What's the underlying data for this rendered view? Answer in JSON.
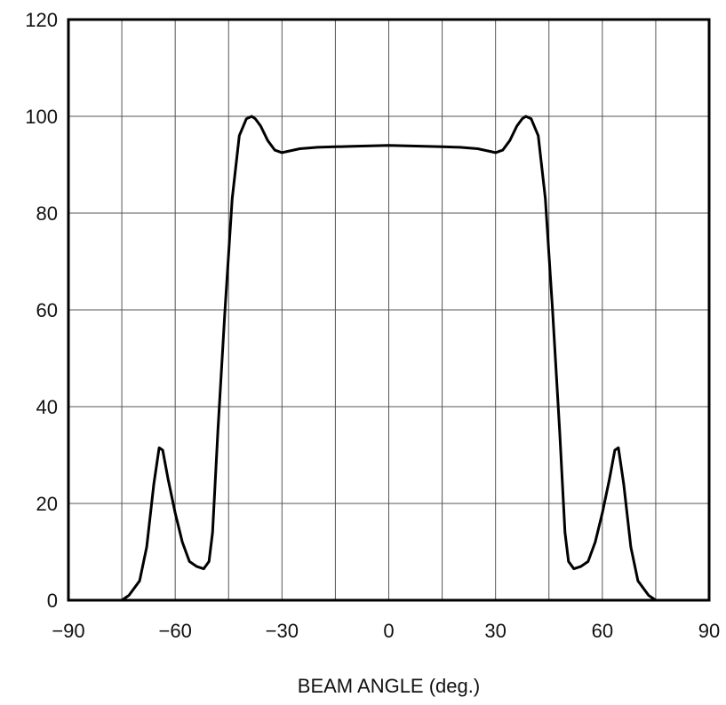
{
  "chart_data": {
    "type": "line",
    "title": "",
    "xlabel": "BEAM ANGLE (deg.)",
    "ylabel": "",
    "xlim": [
      -90,
      90
    ],
    "ylim": [
      0,
      120
    ],
    "grid": true,
    "x_ticks": [
      -90,
      -75,
      -60,
      -45,
      -30,
      -15,
      0,
      15,
      30,
      45,
      60,
      75,
      90
    ],
    "x_tick_labels": [
      "−90",
      "",
      "−60",
      "",
      "−30",
      "",
      "0",
      "",
      "30",
      "",
      "60",
      "",
      "90"
    ],
    "y_ticks": [
      0,
      20,
      40,
      60,
      80,
      100,
      120
    ],
    "y_tick_labels": [
      "0",
      "20",
      "40",
      "60",
      "80",
      "100",
      "120"
    ],
    "colors": {
      "line": "#000000",
      "grid": "#555555",
      "frame": "#000000"
    },
    "series": [
      {
        "x": [
          -75,
          -73,
          -70,
          -68,
          -66,
          -64.5,
          -63.5,
          -62,
          -60,
          -58,
          -56,
          -54,
          -52,
          -50.5,
          -49.5,
          -48,
          -46,
          -44,
          -42,
          -40,
          -38.5,
          -37.5,
          -36,
          -34,
          -32,
          -30,
          -25,
          -20,
          -15,
          -10,
          -5,
          0,
          5,
          10,
          15,
          20,
          25,
          30,
          32,
          34,
          36,
          37.5,
          38.5,
          40,
          42,
          44,
          46,
          48,
          49.5,
          50.5,
          52,
          54,
          56,
          58,
          60,
          62,
          63.5,
          64.5,
          66,
          68,
          70,
          73,
          75
        ],
        "y": [
          0,
          1,
          4,
          11,
          24,
          31.5,
          31,
          25,
          18,
          12,
          8,
          7,
          6.5,
          8,
          14,
          35,
          60,
          83,
          96,
          99.5,
          100,
          99.5,
          98,
          95,
          93,
          92.5,
          93.3,
          93.6,
          93.7,
          93.8,
          93.9,
          94,
          93.9,
          93.8,
          93.7,
          93.6,
          93.3,
          92.5,
          93,
          95,
          98,
          99.5,
          100,
          99.5,
          96,
          83,
          60,
          35,
          14,
          8,
          6.5,
          7,
          8,
          12,
          18,
          25,
          31,
          31.5,
          24,
          11,
          4,
          1,
          0
        ]
      }
    ]
  }
}
